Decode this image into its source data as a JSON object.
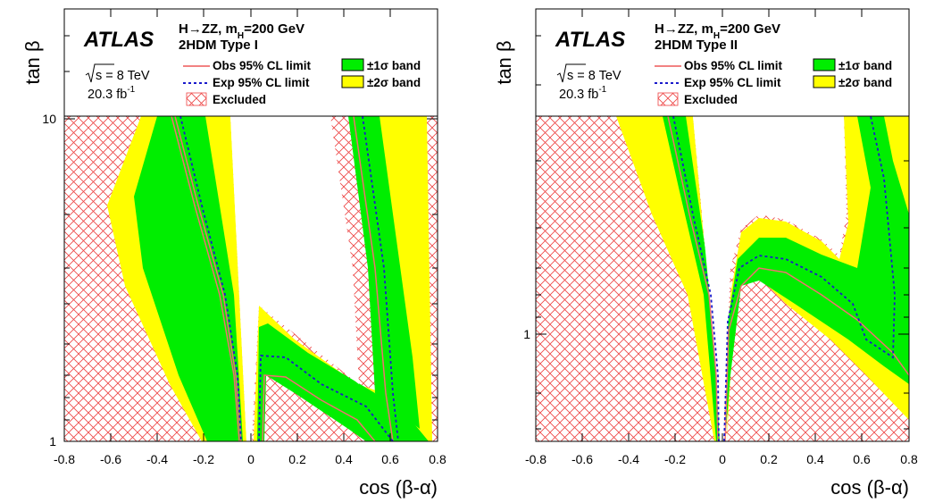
{
  "panels": [
    {
      "atlas_label": "ATLAS",
      "process_label": "H→ZZ, m",
      "process_sub": "H",
      "process_mass": "=200 GeV",
      "model_label": "2HDM Type I",
      "energy_label": "s = 8 TeV",
      "lumi_label": "20.3 fb",
      "lumi_sup": "-1",
      "legend": {
        "obs": "Obs 95% CL limit",
        "exp": "Exp 95% CL limit",
        "excluded": "Excluded",
        "band1": "±1σ band",
        "band2": "±2σ band"
      },
      "ytitle": "tan β",
      "xtitle": "cos (β-α)"
    },
    {
      "atlas_label": "ATLAS",
      "process_label": "H→ZZ, m",
      "process_sub": "H",
      "process_mass": "=200 GeV",
      "model_label": "2HDM Type II",
      "energy_label": "s = 8 TeV",
      "lumi_label": "20.3 fb",
      "lumi_sup": "-1",
      "legend": {
        "obs": "Obs 95% CL limit",
        "exp": "Exp 95% CL limit",
        "excluded": "Excluded",
        "band1": "±1σ band",
        "band2": "±2σ band"
      },
      "ytitle": "tan β",
      "xtitle": "cos (β-α)"
    }
  ],
  "colors": {
    "band1": "#00ee00",
    "band2": "#ffff00",
    "obs": "#f07070",
    "exp": "#1a1acc",
    "hatch": "#ee4444"
  },
  "chart_data": [
    {
      "type": "area",
      "title": "2HDM Type I",
      "xlabel": "cos (β-α)",
      "ylabel": "tan β",
      "xlim": [
        -0.8,
        0.8
      ],
      "ylim": [
        1,
        15
      ],
      "y_log": true,
      "x_ticks": [
        "-0.8",
        "-0.6",
        "-0.4",
        "-0.2",
        "0",
        "0.2",
        "0.4",
        "0.6",
        "0.8"
      ],
      "y_ticks": [
        "1",
        "10"
      ],
      "legend_position": "top",
      "series": [
        {
          "name": "Obs 95% CL limit",
          "points": [
            [
              -0.3,
              10
            ],
            [
              -0.19,
              4
            ],
            [
              -0.12,
              2.4
            ],
            [
              -0.06,
              1.5
            ],
            [
              -0.03,
              1.0
            ],
            [
              0.03,
              1.0
            ],
            [
              0.05,
              1.5
            ],
            [
              0.1,
              1.75
            ],
            [
              0.2,
              1.45
            ],
            [
              0.3,
              1.25
            ],
            [
              0.4,
              1.12
            ],
            [
              0.46,
              1.02
            ],
            [
              0.5,
              1.0
            ],
            [
              0.36,
              10
            ]
          ]
        },
        {
          "name": "Exp 95% CL limit",
          "points": [
            [
              -0.28,
              10
            ],
            [
              -0.16,
              3.5
            ],
            [
              -0.1,
              2.3
            ],
            [
              -0.05,
              1.5
            ],
            [
              -0.03,
              1.0
            ],
            [
              0.03,
              1.0
            ],
            [
              0.05,
              1.5
            ],
            [
              0.12,
              1.68
            ],
            [
              0.25,
              1.35
            ],
            [
              0.4,
              1.18
            ],
            [
              0.52,
              1.05
            ],
            [
              0.55,
              1.0
            ],
            [
              0.42,
              10
            ]
          ]
        },
        {
          "name": "±1σ band",
          "lower": [
            [
              -0.38,
              10
            ],
            [
              -0.26,
              4
            ],
            [
              -0.14,
              2.2
            ],
            [
              -0.05,
              1.2
            ],
            [
              -0.04,
              1.0
            ],
            [
              0.03,
              1.0
            ],
            [
              0.06,
              1.3
            ],
            [
              0.2,
              1.3
            ],
            [
              0.35,
              1.1
            ],
            [
              0.45,
              1.0
            ]
          ],
          "upper": [
            [
              -0.2,
              10
            ],
            [
              -0.1,
              3.6
            ],
            [
              -0.05,
              1.8
            ],
            [
              -0.02,
              1.0
            ],
            [
              0.04,
              1.0
            ],
            [
              0.06,
              2.0
            ],
            [
              0.2,
              1.6
            ],
            [
              0.45,
              1.15
            ],
            [
              0.52,
              1.0
            ],
            [
              0.45,
              10
            ]
          ]
        },
        {
          "name": "±2σ band",
          "lower": [
            [
              -0.44,
              10
            ],
            [
              -0.33,
              4
            ],
            [
              -0.18,
              2.0
            ],
            [
              -0.06,
              1.0
            ],
            [
              0.02,
              1.0
            ],
            [
              0.06,
              1.2
            ],
            [
              0.2,
              1.2
            ],
            [
              0.38,
              1.0
            ]
          ],
          "upper": [
            [
              -0.12,
              10
            ],
            [
              -0.06,
              4
            ],
            [
              -0.02,
              1.0
            ],
            [
              0.05,
              1.0
            ],
            [
              0.06,
              2.5
            ],
            [
              0.2,
              1.8
            ],
            [
              0.5,
              1.25
            ],
            [
              0.62,
              1.0
            ],
            [
              0.5,
              10
            ]
          ]
        }
      ]
    },
    {
      "type": "area",
      "title": "2HDM Type II",
      "xlabel": "cos (β-α)",
      "ylabel": "tan β",
      "xlim": [
        -0.8,
        0.8
      ],
      "ylim": [
        0.5,
        5
      ],
      "y_log": true,
      "x_ticks": [
        "-0.8",
        "-0.6",
        "-0.4",
        "-0.2",
        "0",
        "0.2",
        "0.4",
        "0.6",
        "0.8"
      ],
      "y_ticks": [
        "1"
      ],
      "legend_position": "top",
      "series": [
        {
          "name": "Obs 95% CL limit",
          "points": [
            [
              -0.24,
              3.0
            ],
            [
              -0.12,
              2.0
            ],
            [
              -0.04,
              1.2
            ],
            [
              -0.01,
              0.5
            ],
            [
              0.01,
              0.5
            ],
            [
              0.04,
              1.2
            ],
            [
              0.08,
              1.7
            ],
            [
              0.16,
              1.9
            ],
            [
              0.3,
              1.6
            ],
            [
              0.5,
              1.15
            ],
            [
              0.7,
              0.7
            ],
            [
              0.8,
              0.6
            ]
          ]
        },
        {
          "name": "Exp 95% CL limit",
          "points": [
            [
              -0.2,
              3.0
            ],
            [
              -0.1,
              2.0
            ],
            [
              -0.03,
              1.2
            ],
            [
              -0.01,
              0.5
            ],
            [
              0.01,
              0.5
            ],
            [
              0.03,
              1.3
            ],
            [
              0.1,
              1.95
            ],
            [
              0.2,
              2.0
            ],
            [
              0.35,
              1.6
            ],
            [
              0.55,
              1.3
            ],
            [
              0.7,
              0.9
            ],
            [
              0.75,
              0.85
            ],
            [
              0.65,
              3.0
            ]
          ]
        },
        {
          "name": "±1σ band",
          "lower": [
            [
              -0.26,
              3.0
            ],
            [
              -0.13,
              1.9
            ],
            [
              -0.03,
              1.0
            ],
            [
              -0.02,
              0.5
            ],
            [
              0.02,
              0.5
            ],
            [
              0.06,
              1.3
            ],
            [
              0.15,
              1.75
            ],
            [
              0.4,
              1.3
            ],
            [
              0.7,
              0.75
            ],
            [
              0.8,
              0.7
            ]
          ],
          "upper": [
            [
              -0.15,
              3.0
            ],
            [
              -0.07,
              2.0
            ],
            [
              -0.01,
              0.5
            ],
            [
              0.01,
              0.5
            ],
            [
              0.05,
              1.6
            ],
            [
              0.15,
              2.5
            ],
            [
              0.3,
              2.2
            ],
            [
              0.55,
              1.7
            ],
            [
              0.65,
              3.0
            ]
          ]
        },
        {
          "name": "±2σ band",
          "lower": [
            [
              -0.3,
              3.0
            ],
            [
              -0.16,
              1.7
            ],
            [
              -0.04,
              0.8
            ],
            [
              -0.02,
              0.5
            ],
            [
              0.02,
              0.5
            ],
            [
              0.08,
              1.2
            ],
            [
              0.15,
              1.6
            ],
            [
              0.4,
              1.1
            ],
            [
              0.7,
              0.7
            ],
            [
              0.8,
              0.6
            ]
          ],
          "upper": [
            [
              -0.12,
              3.0
            ],
            [
              -0.05,
              2.0
            ],
            [
              -0.01,
              0.5
            ],
            [
              0.01,
              0.5
            ],
            [
              0.05,
              2.0
            ],
            [
              0.16,
              2.8
            ],
            [
              0.4,
              2.3
            ],
            [
              0.6,
              1.8
            ],
            [
              0.7,
              3.0
            ]
          ]
        }
      ]
    }
  ]
}
